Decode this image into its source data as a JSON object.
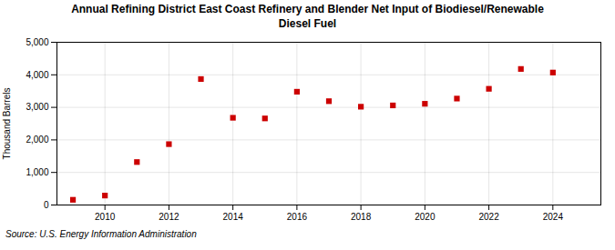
{
  "chart_data": {
    "type": "scatter",
    "title": "Annual Refining District East Coast Refinery and Blender Net Input of Biodiesel/Renewable\nDiesel Fuel",
    "ylabel": "Thousand Barrels",
    "source": "Source: U.S. Energy Information Administration",
    "x": [
      2009,
      2010,
      2011,
      2012,
      2013,
      2014,
      2015,
      2016,
      2017,
      2018,
      2019,
      2020,
      2021,
      2022,
      2023,
      2024
    ],
    "values": [
      160,
      290,
      1320,
      1870,
      3870,
      2680,
      2660,
      3480,
      3190,
      3020,
      3060,
      3110,
      3270,
      3570,
      4180,
      4070
    ],
    "color": "#cc0000",
    "marker": "square",
    "xlim": [
      2008.5,
      2025.5
    ],
    "xticks": [
      2010,
      2012,
      2014,
      2016,
      2018,
      2020,
      2022,
      2024
    ],
    "ylim": [
      0,
      5000
    ],
    "yticks": [
      0,
      {
        "value": 1000,
        "label": "1,000"
      },
      {
        "value": 2000,
        "label": "2,000"
      },
      {
        "value": 3000,
        "label": "3,000"
      },
      {
        "value": 4000,
        "label": "4,000"
      },
      {
        "value": 5000,
        "label": "5,000"
      }
    ],
    "grid": true
  }
}
